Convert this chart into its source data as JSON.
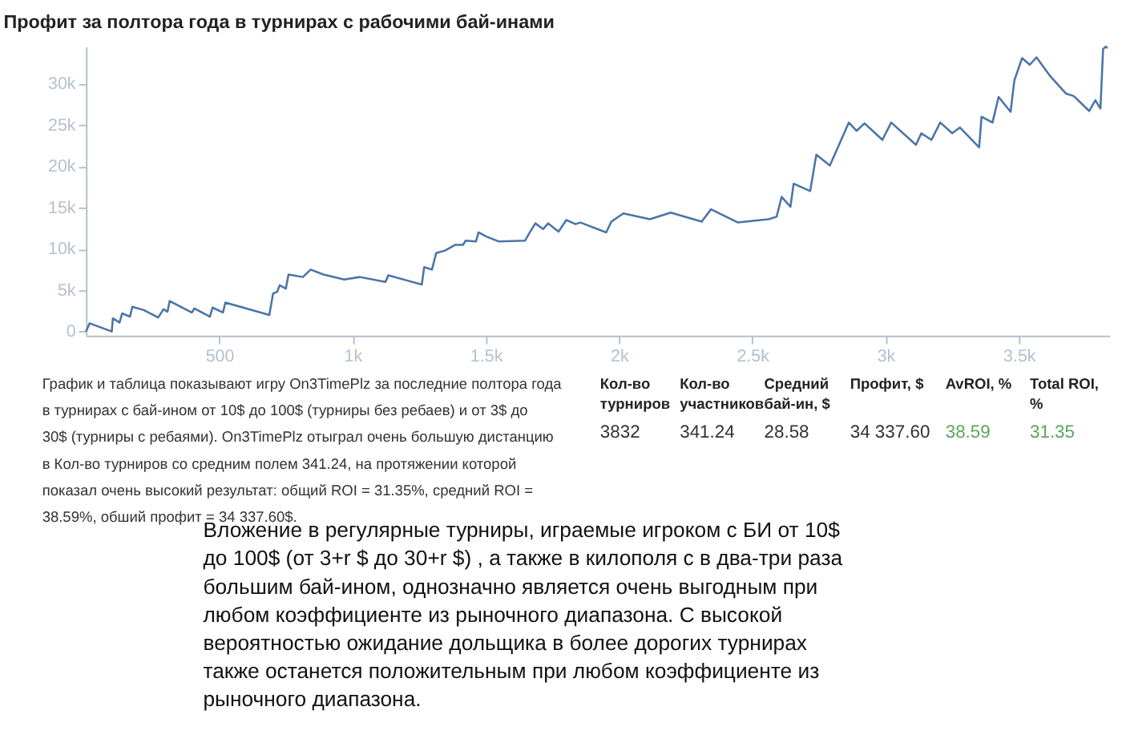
{
  "chart_data": {
    "type": "line",
    "title": "Профит за полтора года в турнирах с рабочими бай-инами",
    "x": [
      0,
      14,
      97,
      101,
      126,
      136,
      165,
      174,
      217,
      271,
      291,
      306,
      314,
      397,
      407,
      465,
      475,
      514,
      523,
      688,
      702,
      717,
      727,
      750,
      760,
      814,
      843,
      891,
      969,
      1027,
      1124,
      1134,
      1260,
      1269,
      1298,
      1314,
      1347,
      1386,
      1415,
      1424,
      1463,
      1473,
      1502,
      1550,
      1647,
      1667,
      1686,
      1715,
      1734,
      1773,
      1802,
      1837,
      1855,
      1952,
      1971,
      2016,
      2116,
      2194,
      2310,
      2345,
      2446,
      2562,
      2591,
      2610,
      2643,
      2655,
      2717,
      2740,
      2791,
      2862,
      2891,
      2921,
      2988,
      3021,
      3114,
      3134,
      3172,
      3205,
      3250,
      3279,
      3351,
      3360,
      3401,
      3424,
      3469,
      3483,
      3512,
      3541,
      3566,
      3618,
      3677,
      3706,
      3764,
      3787,
      3806,
      3816,
      3826,
      3832
    ],
    "series": [
      {
        "color": "#4a74a8",
        "values": [
          0,
          1000,
          0,
          1600,
          1100,
          2200,
          1800,
          3000,
          2600,
          1700,
          2700,
          2400,
          3700,
          2300,
          2800,
          1800,
          2900,
          2300,
          3500,
          2000,
          4600,
          4800,
          5600,
          5200,
          6900,
          6600,
          7500,
          6900,
          6300,
          6600,
          6000,
          6800,
          5700,
          7800,
          7500,
          9500,
          9800,
          10500,
          10500,
          11000,
          10900,
          12000,
          11500,
          10900,
          11000,
          12100,
          13100,
          12400,
          13100,
          12100,
          13500,
          13000,
          13200,
          12000,
          13300,
          14300,
          13600,
          14400,
          13300,
          14800,
          13200,
          13600,
          13900,
          16300,
          15100,
          17900,
          17000,
          21400,
          20100,
          25300,
          24300,
          25200,
          23200,
          25300,
          22600,
          24000,
          23200,
          25300,
          24000,
          24700,
          22300,
          26000,
          25300,
          28400,
          26600,
          30400,
          33100,
          32300,
          33200,
          30900,
          28800,
          28500,
          26700,
          28000,
          27000,
          34200,
          34500,
          34300
        ]
      }
    ],
    "xlim": [
      0,
      3840
    ],
    "ylim": [
      -500,
      34500
    ],
    "xticks": [
      500,
      {
        "value": 1000,
        "label": "1k"
      },
      {
        "value": 1500,
        "label": "1.5k"
      },
      {
        "value": 2000,
        "label": "2k"
      },
      {
        "value": 2500,
        "label": "2.5k"
      },
      {
        "value": 3000,
        "label": "3k"
      },
      {
        "value": 3500,
        "label": "3.5k"
      }
    ],
    "yticks": [
      0,
      {
        "value": 5000,
        "label": "5k"
      },
      {
        "value": 10000,
        "label": "10k"
      },
      {
        "value": 15000,
        "label": "15k"
      },
      {
        "value": 20000,
        "label": "20k"
      },
      {
        "value": 25000,
        "label": "25k"
      },
      {
        "value": 30000,
        "label": "30k"
      }
    ],
    "grid": false,
    "annotations": [
      "График и таблица показывают игру On3TimePlz за последние полтора года\nв турнирах с бай-ином от 10$ до 100$ (турниры без ребаев) и от 3$ до\n30$ (турниры с ребаями). On3TimePlz отыграл очень большую дистанцию\nв Кол-во турниров со средним полем 341.24, на протяжении которой\nпоказал очень высокий результат: общий ROI = 31.35%, средний ROI =\n38.59%, обший профит = 34 337.60$.",
      "Кол-во\nтурниров",
      "Кол-во\nучастников",
      "Средний\nбай-ин, $",
      "Профит, $",
      "AvROI, %",
      "Total ROI,\n%",
      "3832",
      "341.24",
      "28.58",
      "34 337.60",
      "38.59",
      "31.35",
      "Вложение в регулярные турниры, играемые игроком с БИ от 10$\nдо 100$ (от 3+r $ до 30+r $) , а также в килополя с в два-три раза\nбольшим бай-ином, однозначно является очень выгодным при\nлюбом коэффициенте из рыночного диапазона. С высокой\nвероятностью ожидание дольщика в более дорогих турнирах\nтакже останется положительным при любом коэффициенте из\nрыночного диапазона."
    ]
  }
}
